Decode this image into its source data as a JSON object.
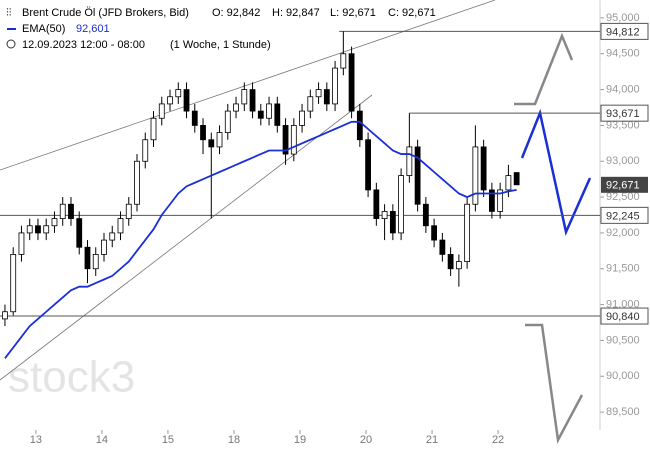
{
  "chart_data": {
    "type": "candlestick",
    "title": "Brent Crude Öl (JFD Brokers, Bid)",
    "ohlc_labels": [
      "O: 92,842",
      "H: 92,847",
      "L: 92,671",
      "C: 92,671"
    ],
    "indicator_name": "EMA(50)",
    "indicator_value": "92,601",
    "period": "12.09.2023 12:00 - 08:00",
    "interval": "(1 Woche, 1 Stunde)",
    "watermark": "stock3",
    "ylim": [
      89250,
      95250
    ],
    "yticks": [
      {
        "value": 95000,
        "label": "95,000"
      },
      {
        "value": 94500,
        "label": "94,500"
      },
      {
        "value": 94000,
        "label": "94,000"
      },
      {
        "value": 93500,
        "label": "93,500"
      },
      {
        "value": 93000,
        "label": "93,000"
      },
      {
        "value": 92500,
        "label": "92,500"
      },
      {
        "value": 92000,
        "label": "92,000"
      },
      {
        "value": 91500,
        "label": "91,500"
      },
      {
        "value": 91000,
        "label": "91,000"
      },
      {
        "value": 90500,
        "label": "90,500"
      },
      {
        "value": 90000,
        "label": "90,000"
      },
      {
        "value": 89500,
        "label": "89,500"
      }
    ],
    "xlim": [
      -0.6,
      72.1
    ],
    "xticks": [
      {
        "value": 3.75,
        "label": "13"
      },
      {
        "value": 11.75,
        "label": "14"
      },
      {
        "value": 19.75,
        "label": "15"
      },
      {
        "value": 27.75,
        "label": "18"
      },
      {
        "value": 35.75,
        "label": "19"
      },
      {
        "value": 43.75,
        "label": "20"
      },
      {
        "value": 51.75,
        "label": "21"
      },
      {
        "value": 59.75,
        "label": "22"
      }
    ],
    "candles": {
      "open": [
        90800,
        90900,
        91700,
        92000,
        92100,
        92000,
        92100,
        92200,
        92400,
        92200,
        91800,
        91500,
        91700,
        91900,
        92000,
        92200,
        92400,
        93000,
        93300,
        93600,
        93800,
        93900,
        94000,
        93700,
        93500,
        93300,
        93200,
        93400,
        93700,
        93800,
        94000,
        93700,
        93600,
        93800,
        93500,
        93100,
        93500,
        93700,
        93900,
        94000,
        93800,
        94300,
        94500,
        93700,
        93300,
        92600,
        92200,
        92300,
        92000,
        92800,
        93200,
        92400,
        92100,
        91900,
        91700,
        91500,
        91600,
        92400,
        93200,
        92600,
        92300,
        92600,
        92842
      ],
      "high": [
        91000,
        91800,
        92100,
        92200,
        92200,
        92200,
        92300,
        92500,
        92500,
        92300,
        91900,
        91800,
        92000,
        92100,
        92300,
        92500,
        93100,
        93400,
        93700,
        93900,
        94000,
        94100,
        94100,
        93800,
        93600,
        93400,
        93500,
        93800,
        93900,
        94100,
        94100,
        93800,
        93900,
        93900,
        93600,
        93600,
        93800,
        94000,
        94100,
        94100,
        94400,
        94812,
        94600,
        93800,
        93400,
        92700,
        92400,
        92400,
        92900,
        93671,
        93300,
        92500,
        92200,
        92000,
        91800,
        91700,
        92500,
        93500,
        93300,
        92700,
        92700,
        92950,
        92847
      ],
      "low": [
        90700,
        90850,
        91600,
        91900,
        91900,
        91900,
        92000,
        92100,
        92100,
        91700,
        91300,
        91400,
        91600,
        91800,
        91900,
        92100,
        92300,
        92900,
        93200,
        93500,
        93700,
        93800,
        93600,
        93400,
        93100,
        92200,
        93100,
        93300,
        93600,
        93700,
        93600,
        93500,
        93500,
        93400,
        92950,
        93000,
        93400,
        93600,
        93800,
        93700,
        93700,
        94200,
        93600,
        93200,
        92500,
        92100,
        91900,
        91900,
        91900,
        92700,
        92300,
        92000,
        91800,
        91600,
        91400,
        91250,
        91500,
        92300,
        92500,
        92200,
        92200,
        92500,
        92671
      ],
      "close": [
        90900,
        91700,
        92000,
        92100,
        92000,
        92100,
        92200,
        92400,
        92200,
        91800,
        91500,
        91700,
        91900,
        92000,
        92200,
        92400,
        93000,
        93300,
        93600,
        93800,
        93900,
        94000,
        93700,
        93500,
        93300,
        93200,
        93400,
        93700,
        93800,
        94000,
        93700,
        93600,
        93800,
        93500,
        93100,
        93500,
        93700,
        93900,
        94000,
        93800,
        94300,
        94500,
        93700,
        93300,
        92600,
        92200,
        92300,
        92000,
        92800,
        93200,
        92400,
        92100,
        91900,
        91700,
        91500,
        91600,
        92400,
        93200,
        92600,
        92300,
        92600,
        92800,
        92671
      ]
    },
    "ema": {
      "color": "#1a2fd6",
      "values": [
        90250,
        90400,
        90550,
        90700,
        90800,
        90900,
        91000,
        91100,
        91200,
        91250,
        91250,
        91300,
        91350,
        91400,
        91500,
        91600,
        91750,
        91900,
        92050,
        92250,
        92400,
        92550,
        92650,
        92700,
        92750,
        92800,
        92850,
        92900,
        92950,
        93000,
        93050,
        93100,
        93150,
        93150,
        93150,
        93200,
        93250,
        93300,
        93350,
        93400,
        93450,
        93500,
        93550,
        93550,
        93450,
        93350,
        93250,
        93150,
        93100,
        93100,
        93050,
        92950,
        92850,
        92750,
        92650,
        92550,
        92500,
        92550,
        92550,
        92550,
        92550,
        92580,
        92601
      ]
    },
    "levels": [
      {
        "value": 94812,
        "label": "94,812",
        "start": 40.5
      },
      {
        "value": 93671,
        "label": "93,671",
        "start": 49
      },
      {
        "value": 92245,
        "label": "92,245",
        "start": -0.6
      },
      {
        "value": 90840,
        "label": "90,840",
        "start": -0.6
      }
    ],
    "last_price": {
      "value": 92671,
      "label": "92,671"
    }
  }
}
